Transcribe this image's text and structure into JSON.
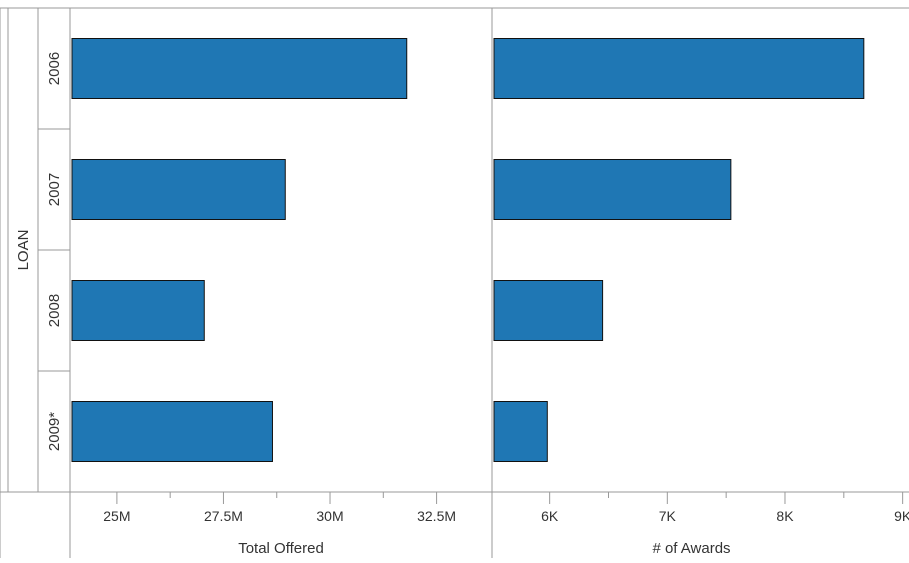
{
  "chart_data": {
    "type": "bar",
    "orientation": "horizontal",
    "row_group_label": "LOAN",
    "categories": [
      "2006",
      "2007",
      "2008",
      "2009*"
    ],
    "colors": {
      "bar": "#1f77b4",
      "bar_stroke": "#111111",
      "divider": "#999999",
      "axis_text": "#333333"
    },
    "panels": [
      {
        "id": "total-offered",
        "xlabel": "Total Offered",
        "xlim": [
          23900000,
          33800000
        ],
        "ticks": [
          25000000,
          27500000,
          30000000,
          32500000
        ],
        "tick_labels": [
          "25M",
          "27.5M",
          "30M",
          "32.5M"
        ],
        "minor_ticks": [
          26250000,
          28750000,
          31250000
        ],
        "values": [
          31800000,
          28950000,
          27050000,
          28650000
        ]
      },
      {
        "id": "num-awards",
        "xlabel": "# of Awards",
        "xlim": [
          5510,
          9020
        ],
        "ticks": [
          6000,
          7000,
          8000,
          9000
        ],
        "tick_labels": [
          "6K",
          "7K",
          "8K",
          "9K"
        ],
        "minor_ticks": [
          6500,
          7500,
          8500
        ],
        "values": [
          8670,
          7540,
          6450,
          5980
        ]
      }
    ]
  }
}
